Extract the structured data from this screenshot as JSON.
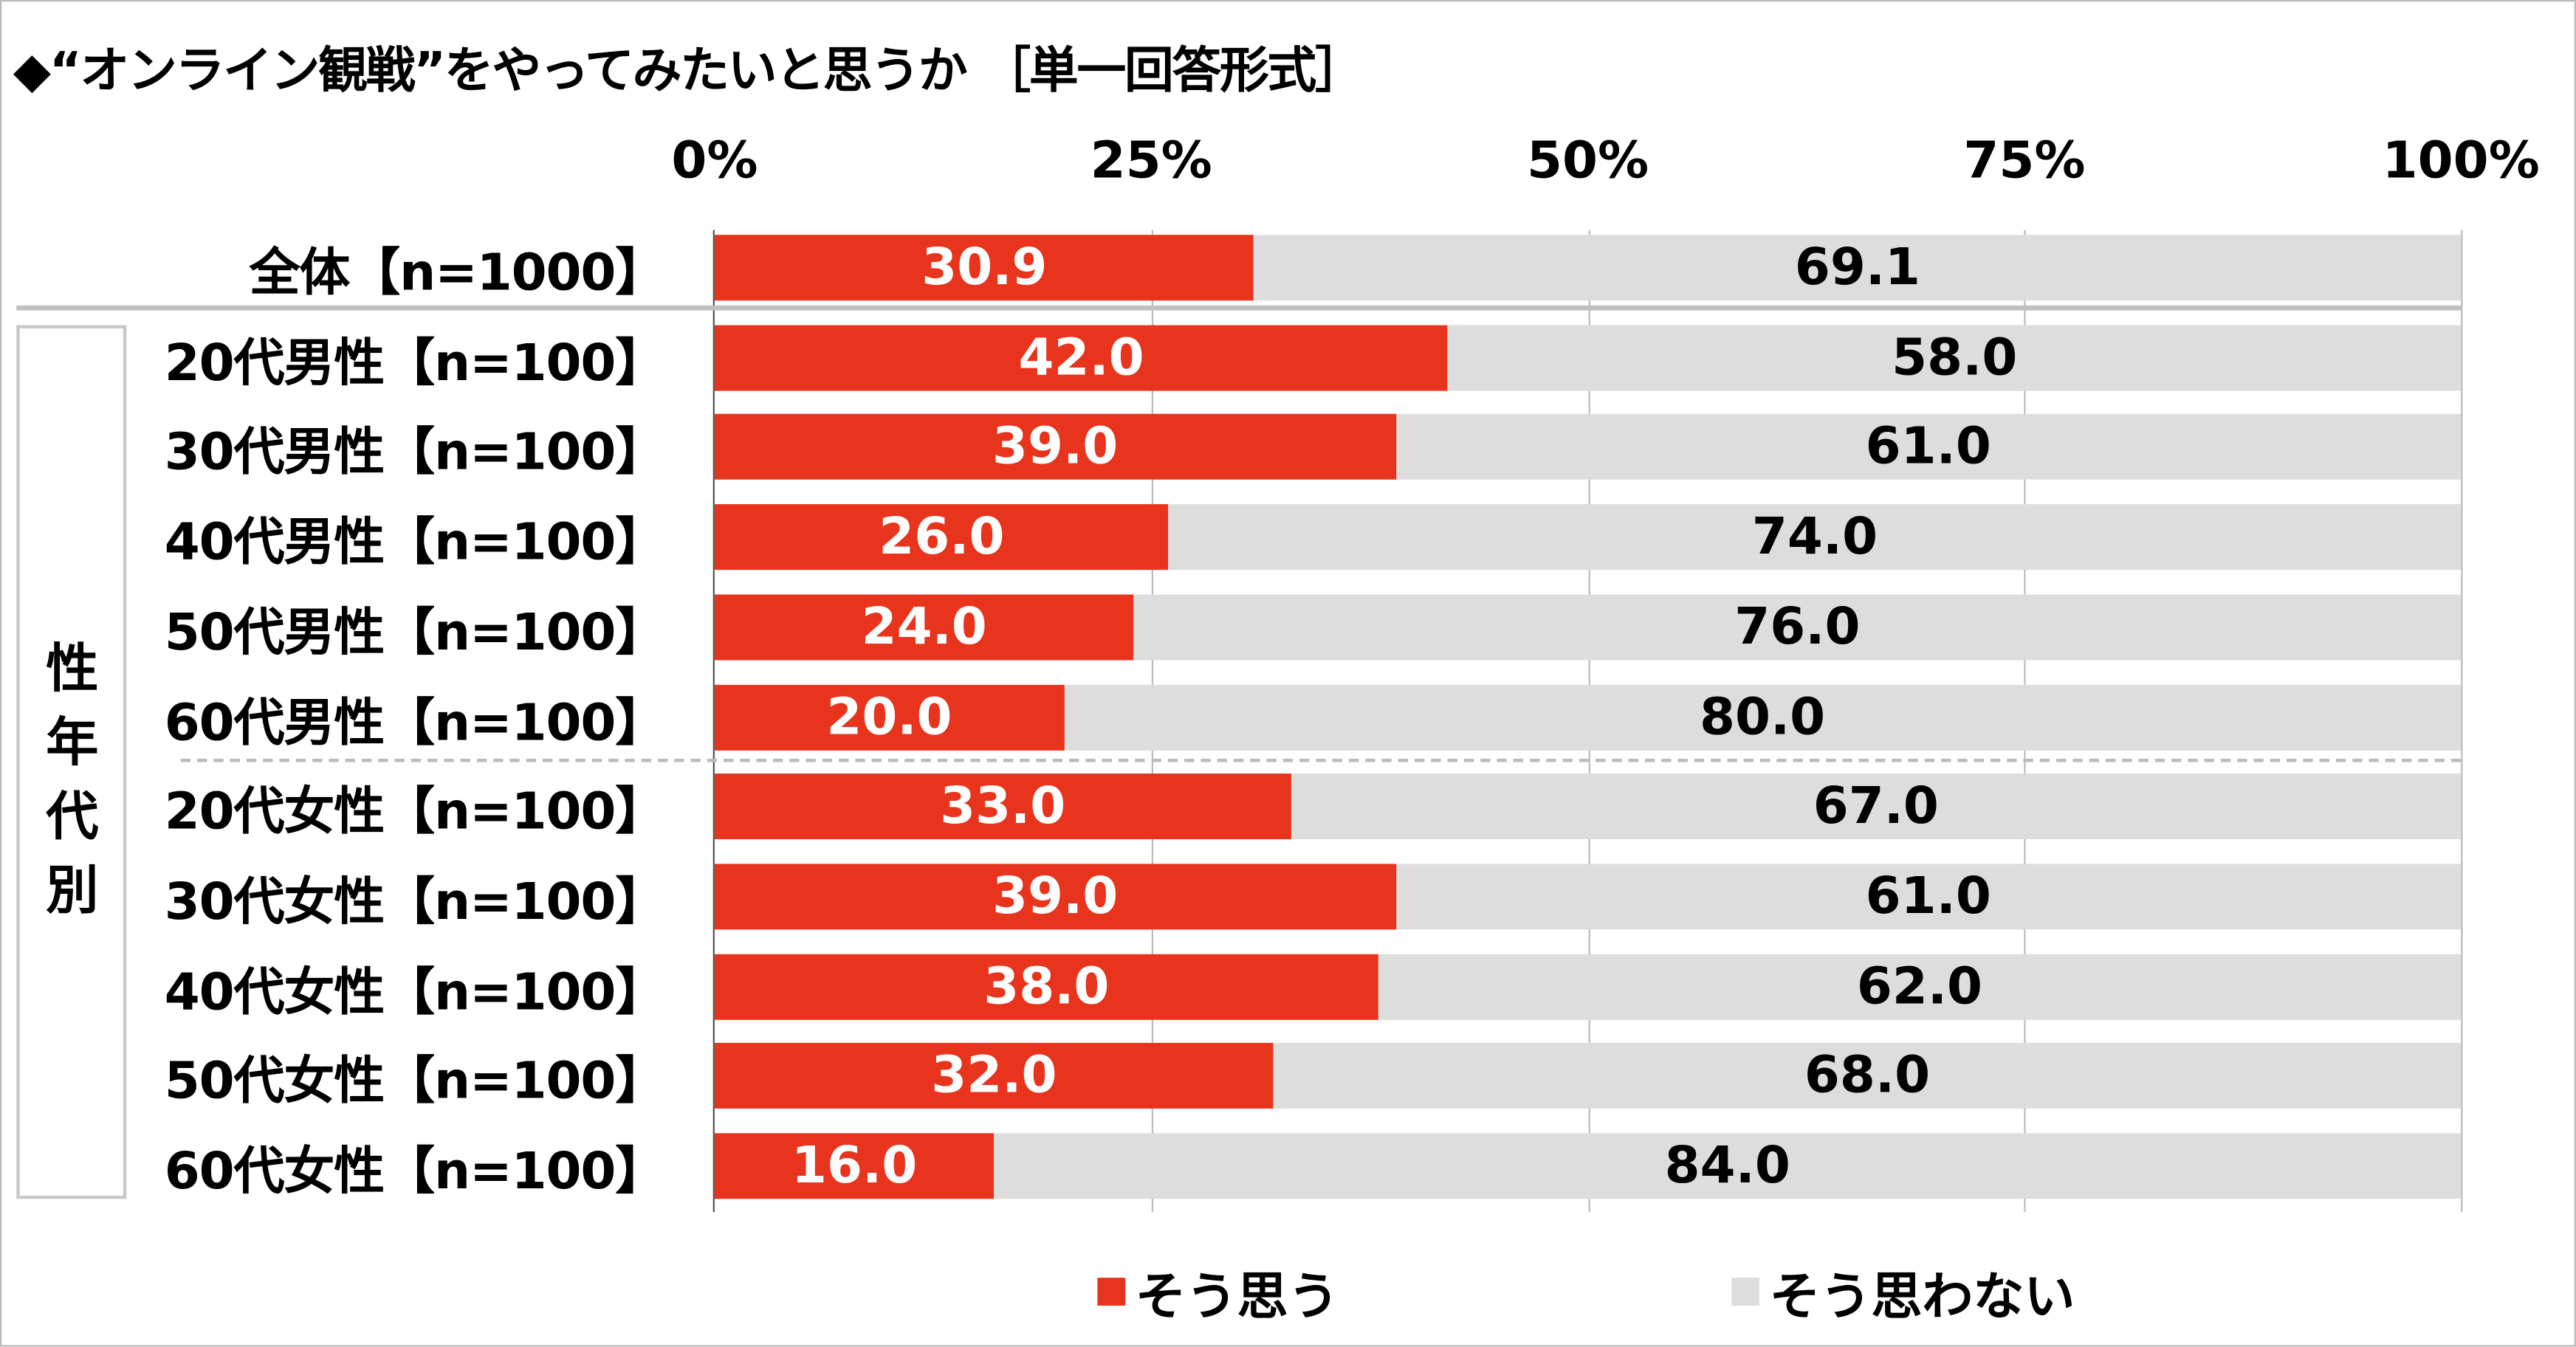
{
  "chart_data": {
    "type": "bar",
    "stacked": true,
    "orientation": "horizontal",
    "title": "◆“オンライン観戦”をやってみたいと思うか ［単一回答形式］",
    "xlim": [
      0,
      100
    ],
    "xticks": [
      "0%",
      "25%",
      "50%",
      "75%",
      "100%"
    ],
    "categories": [
      "全体【n=1000】",
      "20代男性【n=100】",
      "30代男性【n=100】",
      "40代男性【n=100】",
      "50代男性【n=100】",
      "60代男性【n=100】",
      "20代女性【n=100】",
      "30代女性【n=100】",
      "40代女性【n=100】",
      "50代女性【n=100】",
      "60代女性【n=100】"
    ],
    "series": [
      {
        "name": "そう思う",
        "color": "#E8341C",
        "values": [
          30.9,
          42.0,
          39.0,
          26.0,
          24.0,
          20.0,
          33.0,
          39.0,
          38.0,
          32.0,
          16.0
        ]
      },
      {
        "name": "そう思わない",
        "color": "#DDDDDD",
        "values": [
          69.1,
          58.0,
          61.0,
          74.0,
          76.0,
          80.0,
          67.0,
          61.0,
          62.0,
          68.0,
          84.0
        ]
      }
    ],
    "group_label": "性年代別",
    "legend_position": "bottom"
  }
}
